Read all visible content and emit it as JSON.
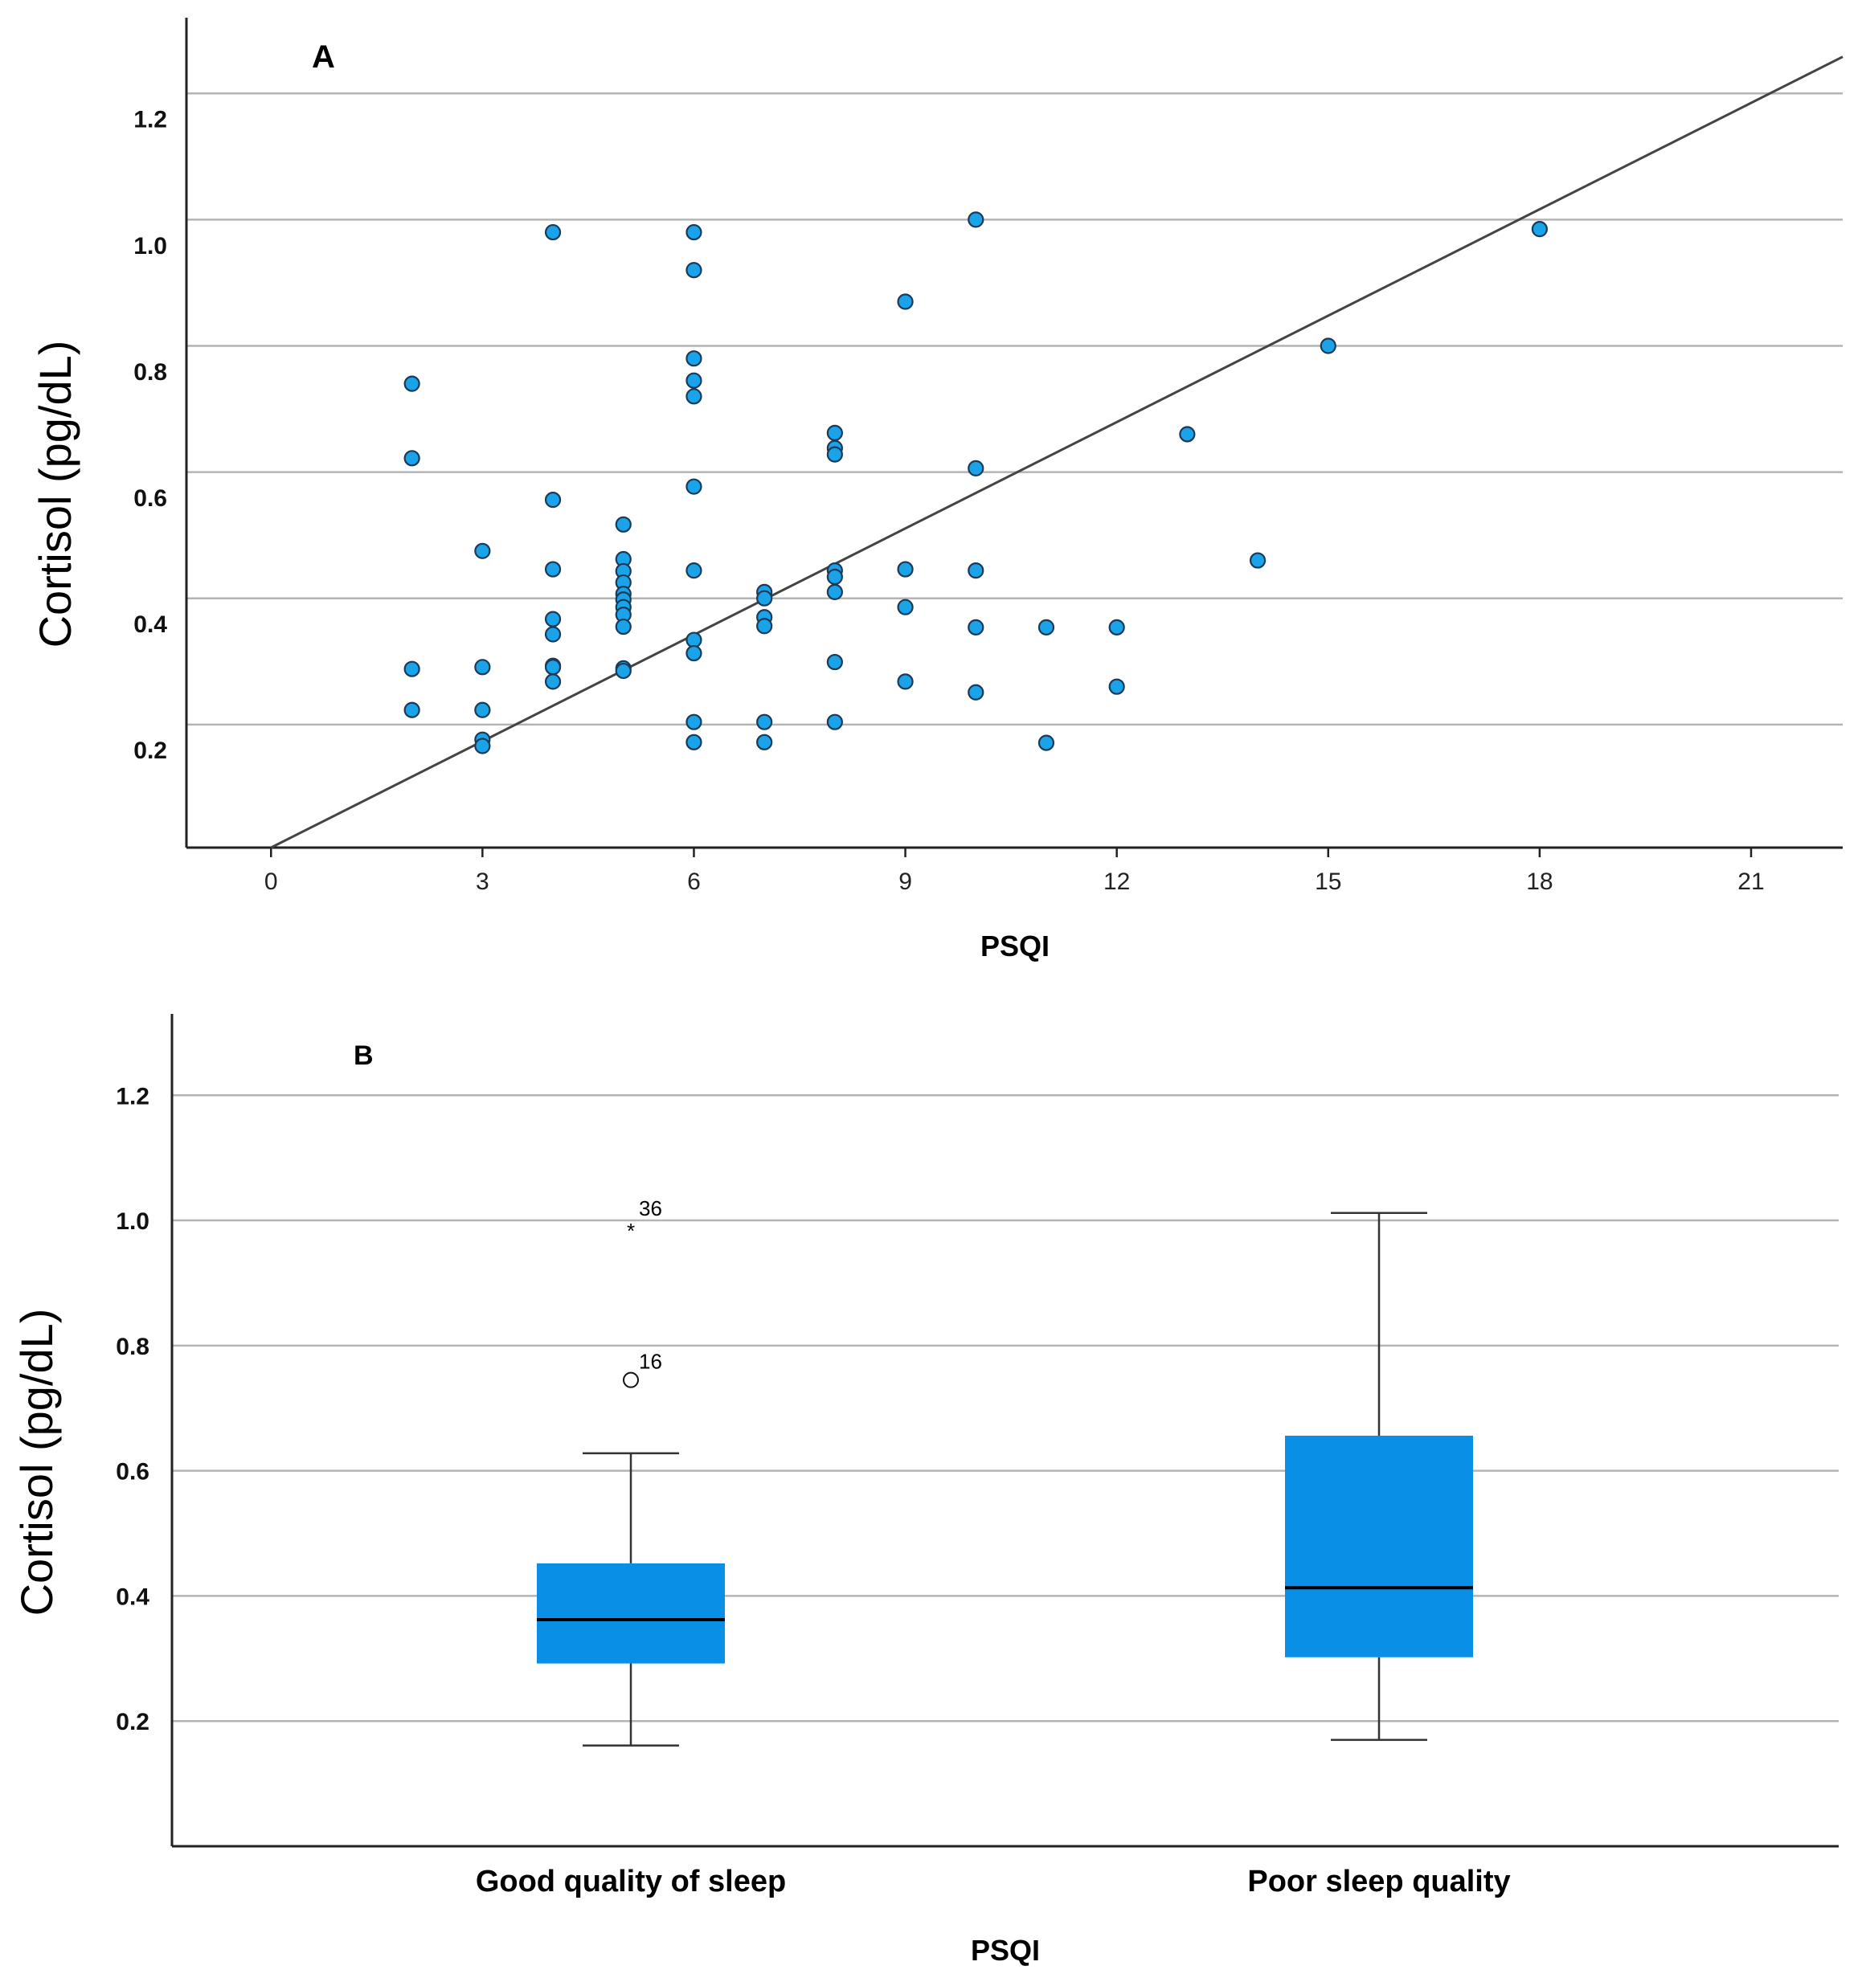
{
  "colors": {
    "point_fill": "#1aa3e8",
    "point_stroke": "#1b3a57",
    "box_fill": "#0a8fe6",
    "grid": "#b4b4b4",
    "axis": "#222222",
    "fit_line": "#444444"
  },
  "chart_data": [
    {
      "type": "scatter",
      "panel_label": "A",
      "xlabel": "PSQI",
      "ylabel": "Cortisol (pg/dL)",
      "xlim": [
        -1.2,
        22.3
      ],
      "ylim": [
        0.045,
        1.36
      ],
      "xticks": [
        0,
        3,
        6,
        9,
        12,
        15,
        18,
        21
      ],
      "xtick_labels": [
        "0",
        "3",
        "6",
        "9",
        "12",
        "15",
        "18",
        "21"
      ],
      "yticks": [
        0.2,
        0.4,
        0.6,
        0.8,
        1.0,
        1.2
      ],
      "ytick_labels": [
        "0.2",
        "0.4",
        "0.6",
        "0.8",
        "1.0",
        "1.2"
      ],
      "gridlines_y": [
        0.24,
        0.44,
        0.64,
        0.84,
        1.04,
        1.24
      ],
      "grid": "horizontal",
      "fit_line": {
        "x": [
          0,
          22.3
        ],
        "y": [
          0.045,
          1.298
        ]
      },
      "points": [
        {
          "x": 2,
          "y": 0.78
        },
        {
          "x": 2,
          "y": 0.662
        },
        {
          "x": 2,
          "y": 0.328
        },
        {
          "x": 2,
          "y": 0.263
        },
        {
          "x": 3,
          "y": 0.515
        },
        {
          "x": 3,
          "y": 0.331
        },
        {
          "x": 3,
          "y": 0.263
        },
        {
          "x": 3,
          "y": 0.216
        },
        {
          "x": 3,
          "y": 0.206
        },
        {
          "x": 4,
          "y": 1.02
        },
        {
          "x": 4,
          "y": 0.596
        },
        {
          "x": 4,
          "y": 0.486
        },
        {
          "x": 4,
          "y": 0.407
        },
        {
          "x": 4,
          "y": 0.383
        },
        {
          "x": 4,
          "y": 0.333
        },
        {
          "x": 4,
          "y": 0.331
        },
        {
          "x": 4,
          "y": 0.308
        },
        {
          "x": 5,
          "y": 0.557
        },
        {
          "x": 5,
          "y": 0.502
        },
        {
          "x": 5,
          "y": 0.483
        },
        {
          "x": 5,
          "y": 0.465
        },
        {
          "x": 5,
          "y": 0.447
        },
        {
          "x": 5,
          "y": 0.438
        },
        {
          "x": 5,
          "y": 0.426
        },
        {
          "x": 5,
          "y": 0.414
        },
        {
          "x": 5,
          "y": 0.395
        },
        {
          "x": 5,
          "y": 0.329
        },
        {
          "x": 5,
          "y": 0.325
        },
        {
          "x": 6,
          "y": 1.02
        },
        {
          "x": 6,
          "y": 0.96
        },
        {
          "x": 6,
          "y": 0.82
        },
        {
          "x": 6,
          "y": 0.785
        },
        {
          "x": 6,
          "y": 0.76
        },
        {
          "x": 6,
          "y": 0.617
        },
        {
          "x": 6,
          "y": 0.484
        },
        {
          "x": 6,
          "y": 0.374
        },
        {
          "x": 6,
          "y": 0.353
        },
        {
          "x": 6,
          "y": 0.244
        },
        {
          "x": 6,
          "y": 0.212
        },
        {
          "x": 7,
          "y": 0.45
        },
        {
          "x": 7,
          "y": 0.44
        },
        {
          "x": 7,
          "y": 0.41
        },
        {
          "x": 7,
          "y": 0.396
        },
        {
          "x": 7,
          "y": 0.244
        },
        {
          "x": 7,
          "y": 0.212
        },
        {
          "x": 8,
          "y": 0.702
        },
        {
          "x": 8,
          "y": 0.678
        },
        {
          "x": 8,
          "y": 0.668
        },
        {
          "x": 8,
          "y": 0.484
        },
        {
          "x": 8,
          "y": 0.474
        },
        {
          "x": 8,
          "y": 0.45
        },
        {
          "x": 8,
          "y": 0.339
        },
        {
          "x": 8,
          "y": 0.244
        },
        {
          "x": 9,
          "y": 0.91
        },
        {
          "x": 9,
          "y": 0.486
        },
        {
          "x": 9,
          "y": 0.426
        },
        {
          "x": 9,
          "y": 0.308
        },
        {
          "x": 10,
          "y": 1.04
        },
        {
          "x": 10,
          "y": 0.646
        },
        {
          "x": 10,
          "y": 0.484
        },
        {
          "x": 10,
          "y": 0.394
        },
        {
          "x": 10,
          "y": 0.291
        },
        {
          "x": 11,
          "y": 0.394
        },
        {
          "x": 11,
          "y": 0.211
        },
        {
          "x": 12,
          "y": 0.394
        },
        {
          "x": 12,
          "y": 0.3
        },
        {
          "x": 13,
          "y": 0.7
        },
        {
          "x": 14,
          "y": 0.5
        },
        {
          "x": 15,
          "y": 0.84
        },
        {
          "x": 18,
          "y": 1.025
        }
      ]
    },
    {
      "type": "box",
      "panel_label": "B",
      "xlabel": "PSQI",
      "ylabel": "Cortisol (pg/dL)",
      "ylim": [
        0.0,
        1.33
      ],
      "yticks": [
        0.2,
        0.4,
        0.6,
        0.8,
        1.0,
        1.2
      ],
      "ytick_labels": [
        "0.2",
        "0.4",
        "0.6",
        "0.8",
        "1.0",
        "1.2"
      ],
      "gridlines_y": [
        0.2,
        0.4,
        0.6,
        0.8,
        1.0,
        1.2
      ],
      "grid": "horizontal",
      "categories": [
        "Good quality of sleep",
        "Poor sleep quality"
      ],
      "boxes": [
        {
          "category": "Good quality of sleep",
          "min": 0.161,
          "q1": 0.292,
          "median": 0.362,
          "q3": 0.452,
          "max": 0.628,
          "outliers": [
            {
              "value": 0.745,
              "label": "16",
              "marker": "circle"
            },
            {
              "value": 0.99,
              "label": "36",
              "marker": "star"
            }
          ]
        },
        {
          "category": "Poor sleep quality",
          "min": 0.17,
          "q1": 0.302,
          "median": 0.413,
          "q3": 0.656,
          "max": 1.012,
          "outliers": []
        }
      ]
    }
  ]
}
